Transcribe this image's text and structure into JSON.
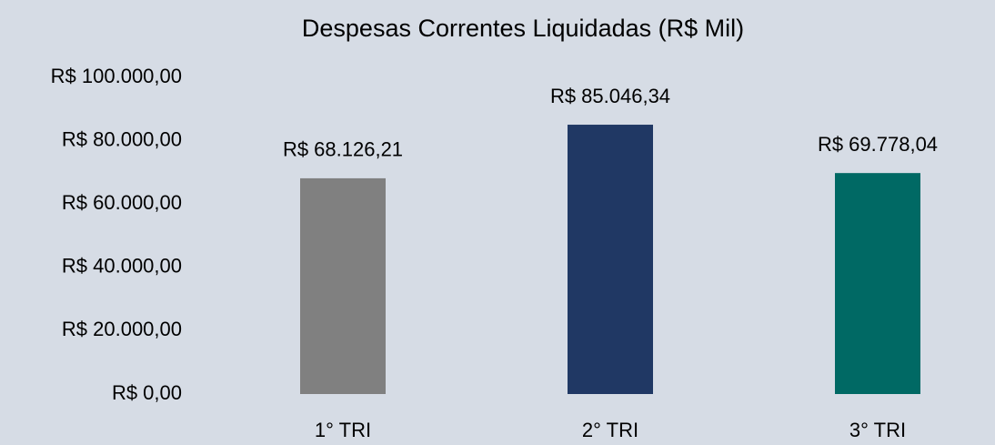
{
  "chart_data": {
    "type": "bar",
    "title": "Despesas Correntes Liquidadas (R$ Mil)",
    "categories": [
      "1° TRI",
      "2° TRI",
      "3° TRI"
    ],
    "values": [
      68126.21,
      85046.34,
      69778.04
    ],
    "value_labels": [
      "R$ 68.126,21",
      "R$ 85.046,34",
      "R$ 69.778,04"
    ],
    "colors": [
      "#808080",
      "#203864",
      "#006964"
    ],
    "ylim": [
      0,
      100000
    ],
    "yticks": [
      {
        "value": 0,
        "label": "R$ 0,00"
      },
      {
        "value": 20000,
        "label": "R$ 20.000,00"
      },
      {
        "value": 40000,
        "label": "R$ 40.000,00"
      },
      {
        "value": 60000,
        "label": "R$ 60.000,00"
      },
      {
        "value": 80000,
        "label": "R$ 80.000,00"
      },
      {
        "value": 100000,
        "label": "R$ 100.000,00"
      }
    ],
    "grid": false
  }
}
